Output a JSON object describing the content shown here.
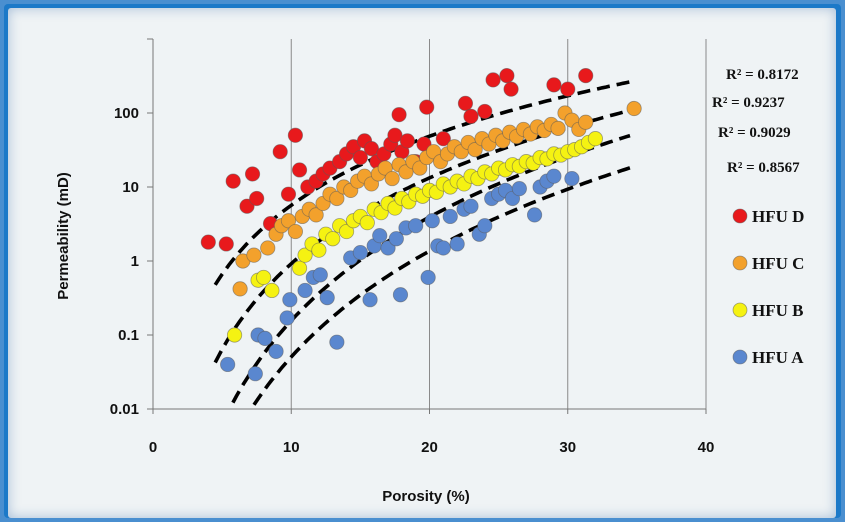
{
  "chart_data": {
    "type": "scatter",
    "title": "",
    "xlabel": "Porosity (%)",
    "ylabel": "Permeability (mD)",
    "xlim": [
      0,
      40
    ],
    "ylim": [
      0.01,
      1000
    ],
    "yscale": "log",
    "x_ticks": [
      "0",
      "10",
      "20",
      "30",
      "40"
    ],
    "y_ticks": [
      "0.01",
      "0.1",
      "1",
      "10",
      "100"
    ],
    "grid": "vertical gridlines",
    "legend_position": "right",
    "r_squared": [
      "R² = 0.8172",
      "R² = 0.9237",
      "R² = 0.9029",
      "R² = 0.8567"
    ],
    "series": [
      {
        "name": "HFU D",
        "color": "#e8191c",
        "points": [
          [
            4,
            1.8
          ],
          [
            5.3,
            1.7
          ],
          [
            5.8,
            12
          ],
          [
            6.8,
            5.5
          ],
          [
            7.2,
            15
          ],
          [
            7.5,
            7
          ],
          [
            8.5,
            3.2
          ],
          [
            9.2,
            30
          ],
          [
            9.8,
            8
          ],
          [
            10.3,
            50
          ],
          [
            10.6,
            17
          ],
          [
            11.2,
            10
          ],
          [
            11.8,
            12
          ],
          [
            12.3,
            15
          ],
          [
            12.8,
            18
          ],
          [
            13.5,
            22
          ],
          [
            14,
            28
          ],
          [
            14.5,
            35
          ],
          [
            15,
            25
          ],
          [
            15.3,
            42
          ],
          [
            15.8,
            33
          ],
          [
            16.2,
            22
          ],
          [
            16.7,
            28
          ],
          [
            17.2,
            38
          ],
          [
            17.5,
            50
          ],
          [
            17.8,
            95
          ],
          [
            18,
            30
          ],
          [
            18.4,
            42
          ],
          [
            19,
            22
          ],
          [
            19.6,
            38
          ],
          [
            19.8,
            120
          ],
          [
            21,
            45
          ],
          [
            22.6,
            135
          ],
          [
            23,
            90
          ],
          [
            24,
            105
          ],
          [
            24.6,
            280
          ],
          [
            25.6,
            320
          ],
          [
            25.9,
            210
          ],
          [
            29,
            240
          ],
          [
            30,
            210
          ],
          [
            31.3,
            320
          ]
        ]
      },
      {
        "name": "HFU C",
        "color": "#f3a12c",
        "points": [
          [
            6.3,
            0.42
          ],
          [
            6.5,
            1
          ],
          [
            7.3,
            1.2
          ],
          [
            8.3,
            1.5
          ],
          [
            8.9,
            2.3
          ],
          [
            9.3,
            3
          ],
          [
            9.8,
            3.5
          ],
          [
            10.3,
            2.5
          ],
          [
            10.8,
            4
          ],
          [
            11.3,
            5
          ],
          [
            11.8,
            4.2
          ],
          [
            12.3,
            6
          ],
          [
            12.8,
            8
          ],
          [
            13.3,
            7
          ],
          [
            13.8,
            10
          ],
          [
            14.3,
            9
          ],
          [
            14.8,
            12
          ],
          [
            15.3,
            14
          ],
          [
            15.8,
            11
          ],
          [
            16.3,
            15
          ],
          [
            16.8,
            18
          ],
          [
            17.3,
            13
          ],
          [
            17.8,
            20
          ],
          [
            18.3,
            16
          ],
          [
            18.8,
            22
          ],
          [
            19.3,
            18
          ],
          [
            19.8,
            25
          ],
          [
            20.3,
            30
          ],
          [
            20.8,
            22
          ],
          [
            21.3,
            28
          ],
          [
            21.8,
            35
          ],
          [
            22.3,
            30
          ],
          [
            22.8,
            40
          ],
          [
            23.3,
            32
          ],
          [
            23.8,
            45
          ],
          [
            24.3,
            38
          ],
          [
            24.8,
            50
          ],
          [
            25.3,
            42
          ],
          [
            25.8,
            55
          ],
          [
            26.3,
            48
          ],
          [
            26.8,
            60
          ],
          [
            27.3,
            52
          ],
          [
            27.8,
            65
          ],
          [
            28.3,
            58
          ],
          [
            28.8,
            70
          ],
          [
            29.3,
            62
          ],
          [
            29.8,
            100
          ],
          [
            30.3,
            80
          ],
          [
            30.8,
            60
          ],
          [
            31.3,
            75
          ],
          [
            34.8,
            115
          ]
        ]
      },
      {
        "name": "HFU B",
        "color": "#f5f212",
        "points": [
          [
            5.9,
            0.1
          ],
          [
            7.6,
            0.55
          ],
          [
            8,
            0.6
          ],
          [
            8.6,
            0.4
          ],
          [
            10.6,
            0.8
          ],
          [
            11,
            1.2
          ],
          [
            11.5,
            1.7
          ],
          [
            12,
            1.4
          ],
          [
            12.5,
            2.3
          ],
          [
            13,
            2
          ],
          [
            13.5,
            3
          ],
          [
            14,
            2.5
          ],
          [
            14.5,
            3.5
          ],
          [
            15,
            4
          ],
          [
            15.5,
            3.3
          ],
          [
            16,
            5
          ],
          [
            16.5,
            4.5
          ],
          [
            17,
            6
          ],
          [
            17.5,
            5.2
          ],
          [
            18,
            7
          ],
          [
            18.5,
            6.3
          ],
          [
            19,
            8
          ],
          [
            19.5,
            7.5
          ],
          [
            20,
            9
          ],
          [
            20.5,
            8.5
          ],
          [
            21,
            11
          ],
          [
            21.5,
            10
          ],
          [
            22,
            12
          ],
          [
            22.5,
            11
          ],
          [
            23,
            14
          ],
          [
            23.5,
            13
          ],
          [
            24,
            16
          ],
          [
            24.5,
            15
          ],
          [
            25,
            18
          ],
          [
            25.5,
            17
          ],
          [
            26,
            20
          ],
          [
            26.5,
            19
          ],
          [
            27,
            22
          ],
          [
            27.5,
            21
          ],
          [
            28,
            25
          ],
          [
            28.5,
            24
          ],
          [
            29,
            28
          ],
          [
            29.5,
            27
          ],
          [
            30,
            30
          ],
          [
            30.5,
            32
          ],
          [
            31,
            35
          ],
          [
            31.5,
            40
          ],
          [
            32,
            45
          ]
        ]
      },
      {
        "name": "HFU A",
        "color": "#5a87cf",
        "points": [
          [
            5.4,
            0.04
          ],
          [
            7.4,
            0.03
          ],
          [
            7.6,
            0.1
          ],
          [
            8.1,
            0.09
          ],
          [
            8.9,
            0.06
          ],
          [
            9.7,
            0.17
          ],
          [
            9.9,
            0.3
          ],
          [
            11,
            0.4
          ],
          [
            11.6,
            0.6
          ],
          [
            12.1,
            0.65
          ],
          [
            12.6,
            0.32
          ],
          [
            13.3,
            0.08
          ],
          [
            14.3,
            1.1
          ],
          [
            15,
            1.3
          ],
          [
            15.7,
            0.3
          ],
          [
            16,
            1.6
          ],
          [
            16.4,
            2.2
          ],
          [
            17,
            1.5
          ],
          [
            17.6,
            2
          ],
          [
            17.9,
            0.35
          ],
          [
            18.3,
            2.8
          ],
          [
            19,
            3
          ],
          [
            19.9,
            0.6
          ],
          [
            20.2,
            3.5
          ],
          [
            20.6,
            1.6
          ],
          [
            21,
            1.5
          ],
          [
            21.5,
            4
          ],
          [
            22,
            1.7
          ],
          [
            22.5,
            5
          ],
          [
            23,
            5.5
          ],
          [
            23.6,
            2.3
          ],
          [
            24,
            3
          ],
          [
            24.5,
            7
          ],
          [
            25,
            8
          ],
          [
            25.5,
            9
          ],
          [
            26,
            7
          ],
          [
            26.5,
            9.5
          ],
          [
            27.6,
            4.2
          ],
          [
            28,
            10
          ],
          [
            28.5,
            12
          ],
          [
            29,
            14
          ],
          [
            30.3,
            13
          ]
        ]
      }
    ],
    "fit_curves": [
      {
        "name": "HFU D trend",
        "x_range": [
          4.5,
          34.5
        ],
        "a": 0.0045,
        "b": 3.1
      },
      {
        "name": "HFU C trend",
        "x_range": [
          4.5,
          34.5
        ],
        "a": 0.00013,
        "b": 3.85
      },
      {
        "name": "HFU B trend",
        "x_range": [
          4.0,
          34.5
        ],
        "a": 3.5e-06,
        "b": 4.65
      },
      {
        "name": "HFU A trend",
        "x_range": [
          4.0,
          34.5
        ],
        "a": 9e-07,
        "b": 4.75
      }
    ]
  }
}
